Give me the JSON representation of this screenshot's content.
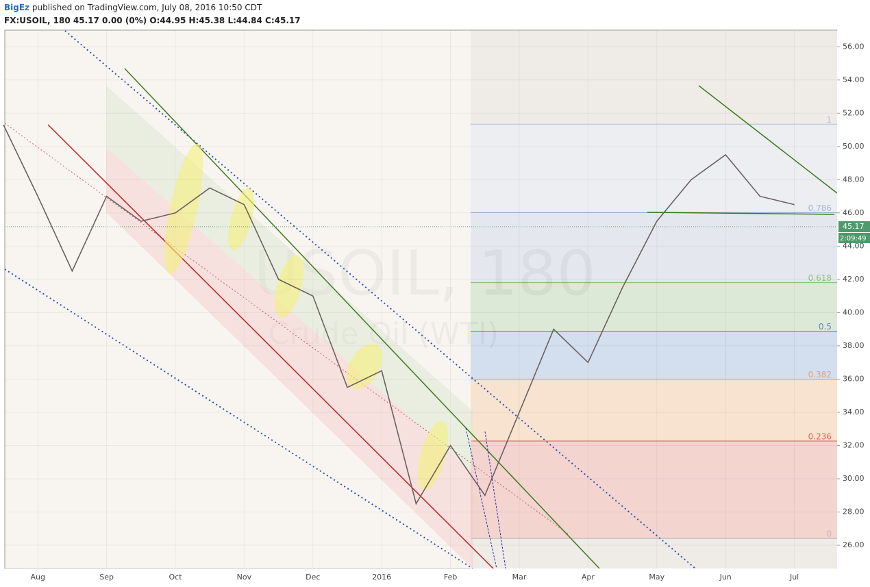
{
  "header": {
    "author": "BigEz",
    "published": "published on TradingView.com, July 08, 2016 10:50 CDT",
    "symbol_line": "FX:USOIL, 180 45.17 0.00 (0%) O:44.95 H:45.38 L:44.84 C:45.17"
  },
  "chart_data": {
    "type": "line",
    "watermark": "USOIL, 180",
    "watermark_sub": "Crude Oil (WTI)",
    "categories": [
      null,
      "Aug",
      null,
      "Sep",
      null,
      "Oct",
      null,
      "Nov",
      null,
      "Dec",
      null,
      "2016",
      null,
      "Feb",
      null,
      "Mar",
      null,
      "Apr",
      null,
      "May",
      null,
      "Jun",
      null,
      "Jul"
    ],
    "series": [
      {
        "name": "FX:USOIL",
        "color": "#6b6060",
        "values": [
          51.3,
          47,
          42.5,
          47,
          45.5,
          46,
          47.5,
          46.5,
          42,
          41,
          35.5,
          36.5,
          28.5,
          32,
          29,
          34,
          39,
          37,
          41.5,
          45.5,
          48,
          49.5,
          47,
          46.5
        ]
      }
    ],
    "ylim": [
      24.6,
      57.0
    ],
    "yticks": [
      {
        "value": 26,
        "label": "26.00"
      },
      {
        "value": 28,
        "label": "28.00"
      },
      {
        "value": 30,
        "label": "30.00"
      },
      {
        "value": 32,
        "label": "32.00"
      },
      {
        "value": 34,
        "label": "34.00"
      },
      {
        "value": 36,
        "label": "36.00"
      },
      {
        "value": 38,
        "label": "38.00"
      },
      {
        "value": 40,
        "label": "40.00"
      },
      {
        "value": 42,
        "label": "42.00"
      },
      {
        "value": 44,
        "label": "44.00"
      },
      {
        "value": 46,
        "label": "46.00"
      },
      {
        "value": 48,
        "label": "48.00"
      },
      {
        "value": 50,
        "label": "50.00"
      },
      {
        "value": 52,
        "label": "52.00"
      },
      {
        "value": 54,
        "label": "54.00"
      },
      {
        "value": 56,
        "label": "56.00"
      }
    ],
    "grid": true,
    "last_price": 45.17,
    "countdown": "2:09:49",
    "last_price_color": "#4f9a6c",
    "fib_levels": [
      {
        "level": 1,
        "price": 51.34,
        "color": "#b7c4d8",
        "fill": "#eceef2"
      },
      {
        "level": 0.786,
        "price": 46.02,
        "color": "#9fb8d6",
        "fill": "#e4e8ee"
      },
      {
        "level": 0.618,
        "price": 41.81,
        "color": "#8cbf7e",
        "fill": "#dce9d6"
      },
      {
        "level": 0.5,
        "price": 38.88,
        "color": "#5b8ac7",
        "fill": "#d3deee"
      },
      {
        "level": 0.382,
        "price": 35.99,
        "color": "#f0a060",
        "fill": "#f7e3cf"
      },
      {
        "level": 0.236,
        "price": 32.27,
        "color": "#e06060",
        "fill": "#f3d4cf"
      },
      {
        "level": 0,
        "price": 26.41,
        "color": "#bbbbbb",
        "fill": null
      }
    ]
  }
}
